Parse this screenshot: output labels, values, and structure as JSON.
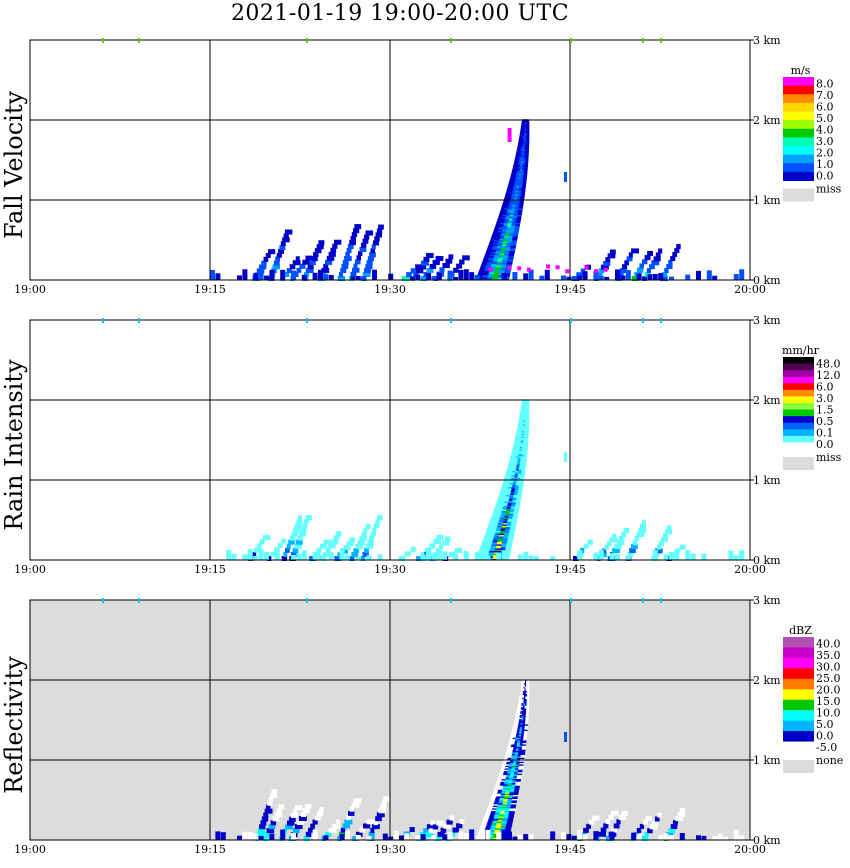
{
  "title": "2021-01-19   19:00-20:00 UTC",
  "x_ticks": [
    "19:00",
    "19:15",
    "19:30",
    "19:45",
    "20:00"
  ],
  "height_ticks": [
    "0 km",
    "1 km",
    "2 km",
    "3 km"
  ],
  "panels": [
    {
      "id": "fall-velocity",
      "ylabel": "Fall Velocity",
      "background": "#ffffff",
      "colorbar": {
        "unit": "m/s",
        "labels": [
          "8.0",
          "7.0",
          "6.0",
          "5.0",
          "4.0",
          "3.0",
          "2.0",
          "1.0",
          "0.0"
        ],
        "colors": [
          "#ff00ff",
          "#ff0000",
          "#ff8c00",
          "#ffd700",
          "#ffff00",
          "#9cff00",
          "#00c800",
          "#00ffb4",
          "#00ffff",
          "#00a0ff",
          "#0050ff",
          "#0000c8"
        ],
        "miss_label": "miss",
        "miss_color": "#dcdcdc"
      }
    },
    {
      "id": "rain-intensity",
      "ylabel": "Rain Intensity",
      "background": "#ffffff",
      "colorbar": {
        "unit": "mm/hr",
        "labels": [
          "48.0",
          "12.0",
          "6.0",
          "3.0",
          "1.5",
          "0.5",
          "0.1",
          "0.0"
        ],
        "colors": [
          "#000000",
          "#500050",
          "#a000a0",
          "#ff00ff",
          "#ff0000",
          "#ff8c00",
          "#ffff00",
          "#8cff3c",
          "#00c800",
          "#0000c8",
          "#0064ff",
          "#00b4ff",
          "#64ffff",
          "#ffffff"
        ],
        "miss_label": "miss",
        "miss_color": "#dcdcdc"
      }
    },
    {
      "id": "reflectivity",
      "ylabel": "Reflectivity",
      "background": "#dcdcdc",
      "colorbar": {
        "unit": "dBZ",
        "labels": [
          "40.0",
          "35.0",
          "30.0",
          "25.0",
          "20.0",
          "15.0",
          "10.0",
          "5.0",
          "0.0",
          "-5.0"
        ],
        "colors": [
          "#b450b4",
          "#c800c8",
          "#ff00ff",
          "#ff0000",
          "#ff7800",
          "#ffff00",
          "#00c800",
          "#00ffff",
          "#00b4ff",
          "#0000c8",
          "#ffffff"
        ],
        "miss_label": "none",
        "miss_color": "#dcdcdc"
      }
    }
  ],
  "chart_data": {
    "type": "heatmap",
    "x_range": [
      "19:00",
      "20:00"
    ],
    "y_range_km": [
      0,
      3.5
    ],
    "x_unit": "UTC",
    "y_unit": "km",
    "grid": true,
    "features": [
      {
        "name": "shallow cells 19:18-19:28",
        "time_start": "19:18",
        "time_end": "19:28",
        "top_km": 0.7
      },
      {
        "name": "shallow cells 19:31-19:35",
        "time_start": "19:31",
        "time_end": "19:35",
        "top_km": 0.35
      },
      {
        "name": "main cell",
        "time_start": "19:35",
        "time_end": "19:43",
        "top_km": 2.0
      },
      {
        "name": "trailing cells 19:45-20:00",
        "time_start": "19:45",
        "time_end": "20:00",
        "top_km": 0.5
      }
    ]
  }
}
